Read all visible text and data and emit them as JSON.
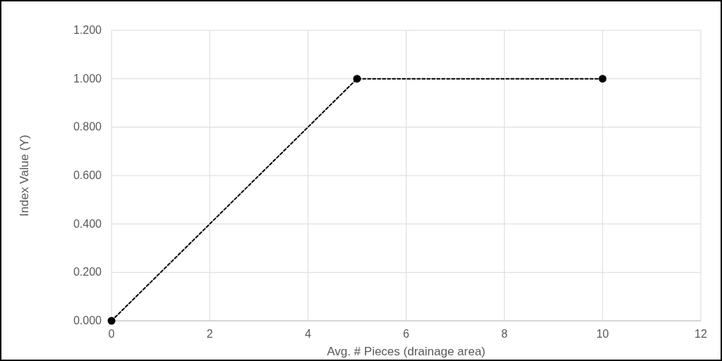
{
  "chart_data": {
    "type": "line",
    "xlabel": "Avg. # Pieces (drainage area)",
    "ylabel": "Index Value (Y)",
    "series": [
      {
        "color": "#000000",
        "x": [
          0,
          5,
          10
        ],
        "values": [
          0,
          1,
          1
        ]
      }
    ],
    "xlim": [
      0,
      12
    ],
    "xticks": [
      0,
      2,
      4,
      6,
      8,
      10,
      12
    ],
    "ylim": [
      0,
      1.2
    ],
    "yticks": [
      {
        "value": 0,
        "label": "0.000"
      },
      {
        "value": 0.2,
        "label": "0.200"
      },
      {
        "value": 0.4,
        "label": "0.400"
      },
      {
        "value": 0.6,
        "label": "0.600"
      },
      {
        "value": 0.8,
        "label": "0.800"
      },
      {
        "value": 1,
        "label": "1.000"
      },
      {
        "value": 1.2,
        "label": "1.200"
      }
    ],
    "grid": true,
    "marker": "circle",
    "line_style": "dashed"
  }
}
